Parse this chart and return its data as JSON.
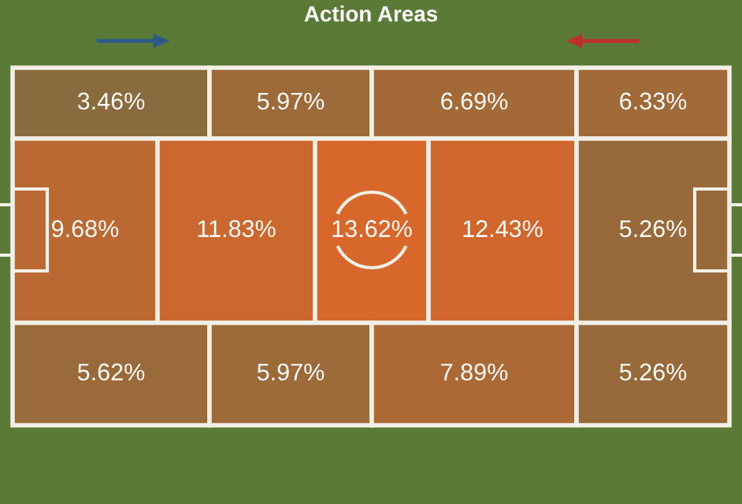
{
  "chart_data": {
    "type": "other",
    "title": "Action Areas",
    "values": [
      3.46,
      5.97,
      6.69,
      6.33,
      9.68,
      11.83,
      13.62,
      12.43,
      5.26,
      5.62,
      5.97,
      7.89,
      5.26
    ],
    "value_labels": [
      "3.46%",
      "5.97%",
      "6.69%",
      "6.33%",
      "9.68%",
      "11.83%",
      "13.62%",
      "12.43%",
      "5.26%",
      "5.62%",
      "5.97%",
      "7.89%",
      "5.26%"
    ],
    "color": "#d8672c"
  }
}
